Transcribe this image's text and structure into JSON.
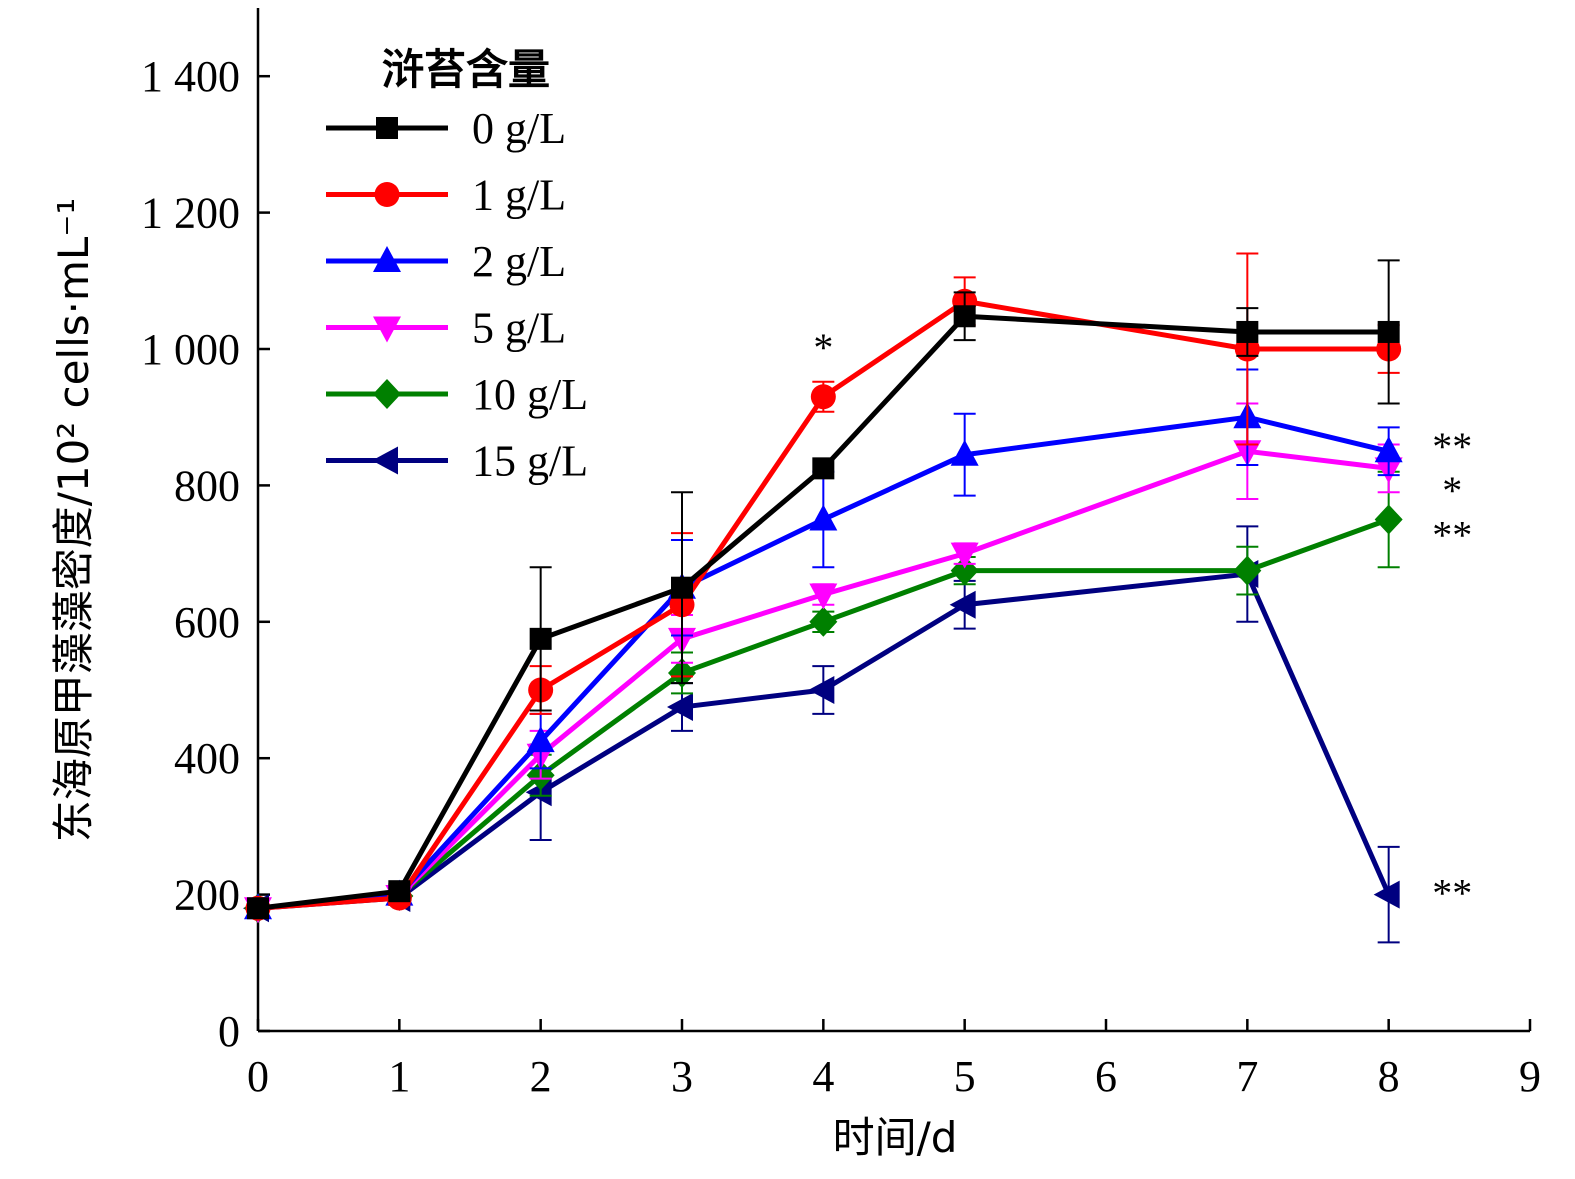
{
  "chart_data": {
    "type": "line",
    "title": "",
    "xlabel": "时间/d",
    "ylabel": "东海原甲藻藻密度/10² cells·mL⁻¹",
    "xlim": [
      0,
      9
    ],
    "ylim": [
      0,
      1500
    ],
    "xticks": [
      "0",
      "1",
      "2",
      "3",
      "4",
      "5",
      "6",
      "7",
      "8",
      "9"
    ],
    "yticks": [
      "0",
      "200",
      "400",
      "600",
      "800",
      "1 000",
      "1 200",
      "1 400"
    ],
    "grid": false,
    "legend": {
      "title": "浒苔含量",
      "placement": "top-left"
    },
    "series": [
      {
        "name": "0 g/L",
        "color": "#000000",
        "marker": "square",
        "x": [
          0,
          1,
          2,
          3,
          4,
          5,
          7,
          8
        ],
        "y": [
          180,
          205,
          575,
          650,
          825,
          1048,
          1025,
          1025
        ],
        "err": [
          8,
          10,
          105,
          140,
          0,
          35,
          35,
          105
        ]
      },
      {
        "name": "1 g/L",
        "color": "#ff0000",
        "marker": "circle",
        "x": [
          0,
          1,
          2,
          3,
          4,
          5,
          7,
          8
        ],
        "y": [
          180,
          195,
          500,
          625,
          930,
          1070,
          1000,
          1000
        ],
        "err": [
          8,
          10,
          35,
          105,
          22,
          35,
          140,
          35
        ]
      },
      {
        "name": "2 g/L",
        "color": "#0000ff",
        "marker": "triangle-up",
        "x": [
          0,
          1,
          2,
          3,
          4,
          5,
          7,
          8
        ],
        "y": [
          180,
          200,
          425,
          650,
          750,
          845,
          900,
          850
        ],
        "err": [
          8,
          10,
          40,
          70,
          70,
          60,
          70,
          35
        ]
      },
      {
        "name": "5 g/L",
        "color": "#ff00ff",
        "marker": "triangle-down",
        "x": [
          0,
          1,
          2,
          3,
          4,
          5,
          7,
          8
        ],
        "y": [
          180,
          198,
          405,
          575,
          640,
          700,
          850,
          825
        ],
        "err": [
          8,
          10,
          35,
          35,
          15,
          15,
          70,
          35
        ]
      },
      {
        "name": "10 g/L",
        "color": "#008000",
        "marker": "diamond",
        "x": [
          0,
          1,
          2,
          3,
          4,
          5,
          7,
          8
        ],
        "y": [
          180,
          198,
          375,
          525,
          600,
          675,
          675,
          750
        ],
        "err": [
          8,
          10,
          30,
          30,
          15,
          20,
          35,
          70
        ]
      },
      {
        "name": "15 g/L",
        "color": "#000080",
        "marker": "triangle-left",
        "x": [
          0,
          1,
          2,
          3,
          4,
          5,
          7,
          8
        ],
        "y": [
          180,
          195,
          350,
          475,
          500,
          625,
          670,
          200
        ],
        "err": [
          8,
          10,
          70,
          35,
          35,
          35,
          70,
          70
        ]
      }
    ],
    "annotations": [
      {
        "text": "*",
        "x": 4,
        "y": 1000
      },
      {
        "text": "**",
        "x": 8.45,
        "y": 855
      },
      {
        "text": "*",
        "x": 8.45,
        "y": 790
      },
      {
        "text": "**",
        "x": 8.45,
        "y": 725
      },
      {
        "text": "**",
        "x": 8.45,
        "y": 200
      }
    ]
  }
}
